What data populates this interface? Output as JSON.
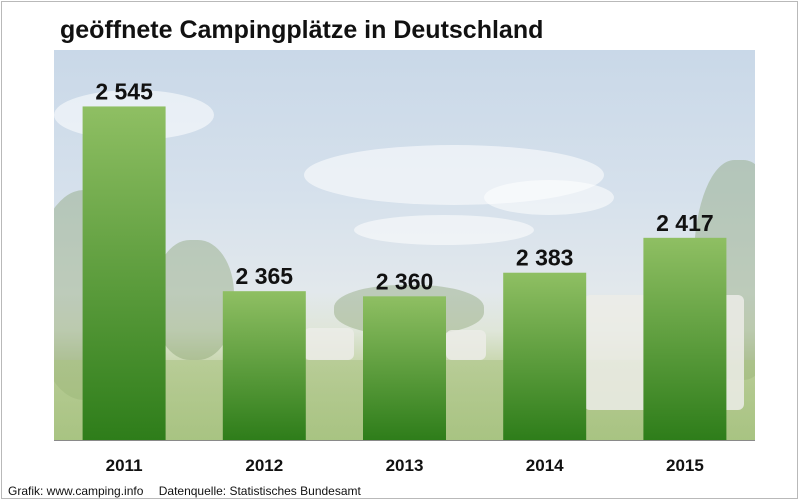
{
  "chart_data": {
    "type": "bar",
    "title": "geöffnete Campingplätze in Deutschland",
    "categories": [
      "2011",
      "2012",
      "2013",
      "2014",
      "2015"
    ],
    "values": [
      2545,
      2365,
      2360,
      2383,
      2417
    ],
    "value_labels": [
      "2 545",
      "2 365",
      "2 360",
      "2 383",
      "2 417"
    ],
    "xlabel": "",
    "ylabel": "",
    "ylim": [
      2220,
      2600
    ],
    "grid": false,
    "legend": "none"
  },
  "colors": {
    "bar_top": "#8fbf63",
    "bar_bottom": "#2e7d1a"
  },
  "footer": {
    "source_graphic": "Grafik: www.camping.info",
    "source_data": "Datenquelle:  Statistisches Bundesamt"
  }
}
